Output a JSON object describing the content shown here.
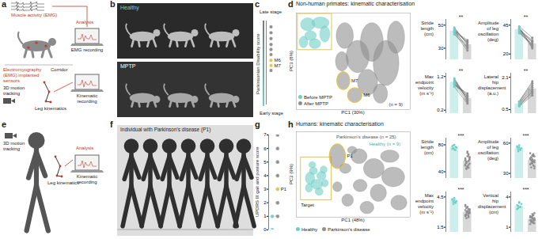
{
  "panels": {
    "a": {
      "letter": "a",
      "emg": "Muscle activity (EMG)",
      "sensors": "Electromyography (EMG) implanted sensors",
      "analysis": "Analysis",
      "emg_recording": "EMG recording",
      "corridor": "Corridor",
      "tracking": "3D motion tracking",
      "leg": "Leg kinematics",
      "kinematic_recording": "Kinematic recording"
    },
    "b": {
      "letter": "b",
      "top": "Healthy",
      "bottom": "MPTP"
    },
    "c": {
      "letter": "c",
      "top": "Late stage",
      "bottom": "Early stage"
    },
    "d": {
      "letter": "d"
    },
    "e": {
      "letter": "e",
      "tracking": "3D motion tracking",
      "leg": "Leg kinematics",
      "analysis": "Analysis",
      "kinematic_recording": "Kinematic recording"
    },
    "f": {
      "letter": "f",
      "title": "Individual with Parkinson's disease (P1)"
    },
    "g": {
      "letter": "g"
    },
    "h": {
      "letter": "h"
    }
  },
  "chart_data": [
    {
      "type": "scatter",
      "ylabel": "Parkinsonian Disability score",
      "x": [
        0,
        0,
        0,
        0,
        0,
        0,
        0,
        0,
        0
      ],
      "values": [
        9.3,
        8.6,
        7.9,
        7.2,
        6.6,
        6.0,
        5.3,
        4.7,
        4.1
      ],
      "colors": [
        "#8f8f8f",
        "#8f8f8f",
        "#8f8f8f",
        "#8f8f8f",
        "#8f8f8f",
        "#8f8f8f",
        "#e6c34a",
        "#e6c34a",
        "#8f8f8f"
      ],
      "xlim": [
        -1,
        1
      ],
      "ylim": [
        0,
        10
      ],
      "tick_labels": false,
      "annotations": [
        {
          "text": "M6",
          "x": 0,
          "y": 5.3
        },
        {
          "text": "M7",
          "x": 0,
          "y": 4.7
        }
      ]
    },
    {
      "type": "ellipse",
      "title": "Non-human primates: kinematic characterisation",
      "xlabel": "PC1 (30%)",
      "ylabel": "PC3 (8%)",
      "xlim": [
        -3,
        5
      ],
      "ylim": [
        -3,
        3
      ],
      "tick_labels": false,
      "legend": "bottom-left",
      "series": [
        {
          "name": "Before MPTP",
          "color": "#6fcfc6",
          "ellipses": [
            {
              "x": -2.2,
              "y": 2.3,
              "rx": 0.5,
              "ry": 0.4
            },
            {
              "x": -1.3,
              "y": 2.4,
              "rx": 0.6,
              "ry": 0.35
            },
            {
              "x": -2.0,
              "y": 1.6,
              "rx": 0.4,
              "ry": 0.3
            },
            {
              "x": -1.0,
              "y": 1.7,
              "rx": 0.35,
              "ry": 0.5
            },
            {
              "x": -1.7,
              "y": 1.1,
              "rx": 0.4,
              "ry": 0.3
            },
            {
              "x": -2.5,
              "y": 1.2,
              "rx": 0.3,
              "ry": 0.35
            }
          ]
        },
        {
          "name": "After MPTP",
          "color": "#8f8f8f",
          "ellipses": [
            {
              "x": 0.4,
              "y": 1.6,
              "rx": 0.6,
              "ry": 0.8
            },
            {
              "x": 1.3,
              "y": 0.3,
              "rx": 0.8,
              "ry": 1.0
            },
            {
              "x": 2.3,
              "y": 1.2,
              "rx": 0.8,
              "ry": 1.2
            },
            {
              "x": 3.3,
              "y": -0.1,
              "rx": 0.9,
              "ry": 1.4
            },
            {
              "x": 2.0,
              "y": -1.3,
              "rx": 0.7,
              "ry": 0.8
            },
            {
              "x": 0.2,
              "y": 0.0,
              "rx": 0.45,
              "ry": 0.6
            },
            {
              "x": 4.0,
              "y": 1.5,
              "rx": 0.6,
              "ry": 1.0
            },
            {
              "x": 2.9,
              "y": -2.0,
              "rx": 0.5,
              "ry": 0.6
            }
          ]
        }
      ],
      "highlights": [
        {
          "label": "M7",
          "x": 0.3,
          "y": -1.2,
          "rx": 0.45,
          "ry": 0.55,
          "color": "#e6c34a"
        },
        {
          "label": "M6",
          "x": 1.1,
          "y": -2.1,
          "rx": 0.5,
          "ry": 0.45,
          "color": "#e6c34a"
        }
      ],
      "target": {
        "x": [
          -2.9,
          -0.5
        ],
        "y": [
          0.7,
          2.95
        ],
        "color": "#e6c34a"
      },
      "annotations": [
        {
          "text": "(n = 9)",
          "x": 3.5,
          "y": -2.7,
          "color": "#333333"
        }
      ]
    },
    {
      "type": "bar",
      "ylabel": "Stride length (cm)",
      "categories": [
        null,
        null
      ],
      "values": [
        45,
        33
      ],
      "colors": [
        "#6fcfc6",
        "#8f8f8f"
      ],
      "pairs": [
        [
          47,
          34
        ],
        [
          45,
          30
        ],
        [
          44,
          36
        ],
        [
          48,
          33
        ],
        [
          43,
          28
        ],
        [
          46,
          35
        ],
        [
          42,
          31
        ],
        [
          45,
          37
        ],
        [
          44,
          32
        ]
      ],
      "ylim": [
        20,
        55
      ],
      "yticks": [
        30,
        50
      ],
      "annotation": "**"
    },
    {
      "type": "bar",
      "ylabel": "Amplitude of leg oscillation (deg)",
      "categories": [
        null,
        null
      ],
      "values": [
        41,
        29
      ],
      "colors": [
        "#6fcfc6",
        "#8f8f8f"
      ],
      "pairs": [
        [
          42,
          30
        ],
        [
          40,
          26
        ],
        [
          44,
          34
        ],
        [
          38,
          28
        ],
        [
          41,
          32
        ],
        [
          43,
          25
        ],
        [
          39,
          29
        ],
        [
          40,
          31
        ],
        [
          42,
          27
        ]
      ],
      "ylim": [
        15,
        50
      ],
      "yticks": [
        20,
        45
      ],
      "annotation": "**"
    },
    {
      "type": "bar",
      "ylabel": "Max endpoint velocity (m s⁻¹)",
      "categories": [
        null,
        null
      ],
      "values": [
        1.03,
        0.55
      ],
      "colors": [
        "#6fcfc6",
        "#8f8f8f"
      ],
      "pairs": [
        [
          1.1,
          0.6
        ],
        [
          1.0,
          0.45
        ],
        [
          0.95,
          0.7
        ],
        [
          1.15,
          0.5
        ],
        [
          1.05,
          0.55
        ],
        [
          0.9,
          0.4
        ],
        [
          1.0,
          0.65
        ],
        [
          1.1,
          0.5
        ],
        [
          0.98,
          0.6
        ]
      ],
      "ylim": [
        0.1,
        1.3
      ],
      "yticks": [
        0.2,
        1.2
      ],
      "annotation": "**"
    },
    {
      "type": "bar",
      "ylabel": "Lateral hip displacement (a.u.)",
      "categories": [
        null,
        null
      ],
      "values": [
        0.78,
        1.53
      ],
      "colors": [
        "#6fcfc6",
        "#8f8f8f"
      ],
      "pairs": [
        [
          0.8,
          1.6
        ],
        [
          0.7,
          1.3
        ],
        [
          0.9,
          1.9
        ],
        [
          0.75,
          1.4
        ],
        [
          0.85,
          1.7
        ],
        [
          0.65,
          1.2
        ],
        [
          0.8,
          1.5
        ],
        [
          0.9,
          1.8
        ],
        [
          0.7,
          1.4
        ]
      ],
      "ylim": [
        0.3,
        2.3
      ],
      "yticks": [
        0.5,
        2.1
      ],
      "annotation": "**"
    },
    {
      "type": "scatter",
      "ylabel": "UPDRS III gait and posture score",
      "x": [
        0,
        0,
        0,
        0,
        0,
        0,
        0,
        0,
        0,
        1,
        1,
        1,
        1,
        1,
        1,
        1,
        1,
        1,
        1,
        1,
        1,
        1,
        1,
        1,
        1,
        1,
        1,
        1,
        1,
        1,
        1,
        1,
        1,
        1
      ],
      "values": [
        0,
        0,
        0,
        0,
        0,
        0,
        1,
        1,
        0,
        1,
        1,
        2,
        2,
        2,
        3,
        3,
        3,
        4,
        4,
        4,
        4,
        5,
        5,
        5,
        5,
        6,
        6,
        6,
        7,
        7,
        2,
        4,
        1,
        3
      ],
      "colors": [
        "#6fcfc6",
        "#6fcfc6",
        "#6fcfc6",
        "#6fcfc6",
        "#6fcfc6",
        "#6fcfc6",
        "#6fcfc6",
        "#6fcfc6",
        "#6fcfc6",
        "#8f8f8f",
        "#8f8f8f",
        "#8f8f8f",
        "#8f8f8f",
        "#8f8f8f",
        "#8f8f8f",
        "#8f8f8f",
        "#8f8f8f",
        "#8f8f8f",
        "#8f8f8f",
        "#8f8f8f",
        "#8f8f8f",
        "#8f8f8f",
        "#8f8f8f",
        "#8f8f8f",
        "#8f8f8f",
        "#8f8f8f",
        "#8f8f8f",
        "#8f8f8f",
        "#8f8f8f",
        "#8f8f8f",
        "#8f8f8f",
        "#8f8f8f",
        "#8f8f8f",
        "#e6c34a"
      ],
      "xlim": [
        -0.7,
        1.7
      ],
      "ylim": [
        0,
        7
      ],
      "yticks": [
        0,
        1,
        2,
        3,
        4,
        5,
        6,
        7
      ],
      "tick_labels": "y",
      "annotations": [
        {
          "text": "P1",
          "x": 1,
          "y": 3
        }
      ]
    },
    {
      "type": "ellipse",
      "title": "Humans: kinematic characterisation",
      "xlabel": "PC1 (48%)",
      "ylabel": "PC2 (9%)",
      "xlim": [
        -4,
        6
      ],
      "ylim": [
        -3,
        4
      ],
      "tick_labels": false,
      "legend": "bottom",
      "series": [
        {
          "name": "Healthy",
          "color": "#6fcfc6",
          "ellipses": [
            {
              "x": -2.8,
              "y": 0.2,
              "rx": 0.4,
              "ry": 0.5
            },
            {
              "x": -2.2,
              "y": -0.3,
              "rx": 0.5,
              "ry": 0.4
            },
            {
              "x": -2.5,
              "y": 0.8,
              "rx": 0.35,
              "ry": 0.3
            },
            {
              "x": -1.8,
              "y": 0.4,
              "rx": 0.4,
              "ry": 0.35
            },
            {
              "x": -2.9,
              "y": -0.6,
              "rx": 0.3,
              "ry": 0.35
            },
            {
              "x": -2.0,
              "y": -0.9,
              "rx": 0.35,
              "ry": 0.3
            },
            {
              "x": -1.5,
              "y": -0.2,
              "rx": 0.3,
              "ry": 0.3
            },
            {
              "x": -2.6,
              "y": 1.3,
              "rx": 0.3,
              "ry": 0.25
            },
            {
              "x": -1.6,
              "y": 0.9,
              "rx": 0.3,
              "ry": 0.3
            }
          ]
        },
        {
          "name": "Parkinson's disease",
          "color": "#8f8f8f",
          "ellipses": [
            {
              "x": 0.3,
              "y": 1.0,
              "rx": 0.5,
              "ry": 0.4
            },
            {
              "x": 1.5,
              "y": 2.0,
              "rx": 0.7,
              "ry": 0.6
            },
            {
              "x": 2.8,
              "y": 1.0,
              "rx": 0.9,
              "ry": 0.8
            },
            {
              "x": 4.2,
              "y": 2.0,
              "rx": 0.8,
              "ry": 0.5
            },
            {
              "x": 4.5,
              "y": 0.3,
              "rx": 1.0,
              "ry": 0.8
            },
            {
              "x": 3.2,
              "y": -1.0,
              "rx": 0.7,
              "ry": 0.7
            },
            {
              "x": 1.6,
              "y": -0.4,
              "rx": 0.6,
              "ry": 0.5
            },
            {
              "x": 0.5,
              "y": -1.6,
              "rx": 0.5,
              "ry": 0.5
            },
            {
              "x": 2.2,
              "y": -2.2,
              "rx": 0.6,
              "ry": 0.5
            },
            {
              "x": 5.0,
              "y": -1.8,
              "rx": 0.7,
              "ry": 0.6
            },
            {
              "x": -0.4,
              "y": -0.5,
              "rx": 0.4,
              "ry": 0.4
            },
            {
              "x": 0.9,
              "y": 2.5,
              "rx": 0.4,
              "ry": 0.3
            }
          ]
        }
      ],
      "highlights": [
        {
          "label": "P1",
          "x": -0.4,
          "y": 2.0,
          "rx": 0.7,
          "ry": 1.0,
          "color": "#e6c34a"
        }
      ],
      "target": {
        "x": [
          -3.6,
          -0.9
        ],
        "y": [
          -1.6,
          1.9
        ],
        "color": "#e6c34a",
        "label": "Target"
      },
      "annotations": [
        {
          "text": "Parkinson's disease (n = 25)",
          "x": -0.5,
          "y": 3.6,
          "color": "#555555"
        },
        {
          "text": "Healthy (n = 9)",
          "x": 2.4,
          "y": 3.0,
          "color": "#3fb3a8"
        }
      ]
    },
    {
      "type": "bar",
      "ylabel": "Stride length (cm)",
      "categories": [
        null,
        null
      ],
      "values": [
        76,
        56
      ],
      "colors": [
        "#6fcfc6",
        "#8f8f8f"
      ],
      "points": [
        [
          78,
          75,
          80,
          72,
          76,
          74,
          79,
          73,
          77
        ],
        [
          60,
          55,
          48,
          65,
          52,
          58,
          45,
          70,
          50,
          62,
          57,
          53,
          47,
          66,
          59,
          51,
          44,
          63,
          56,
          61,
          49,
          54,
          68,
          46,
          58
        ]
      ],
      "ylim": [
        30,
        90
      ],
      "yticks": [
        40,
        80
      ],
      "annotation": "***"
    },
    {
      "type": "bar",
      "ylabel": "Amplitude of leg oscillation (deg)",
      "categories": [
        null,
        null
      ],
      "values": [
        55,
        43
      ],
      "colors": [
        "#6fcfc6",
        "#8f8f8f"
      ],
      "points": [
        [
          56,
          54,
          58,
          53,
          55,
          57,
          52,
          56,
          54
        ],
        [
          45,
          40,
          48,
          38,
          43,
          50,
          36,
          44,
          47,
          41,
          39,
          46,
          42,
          49,
          37,
          45,
          43,
          40,
          48,
          35,
          44,
          46,
          41,
          42,
          47
        ]
      ],
      "ylim": [
        25,
        65
      ],
      "yticks": [
        30,
        60
      ],
      "annotation": "***"
    },
    {
      "type": "bar",
      "ylabel": "Max endpoint velocity (m s⁻¹)",
      "categories": [
        null,
        null
      ],
      "values": [
        4.1,
        3.0
      ],
      "colors": [
        "#6fcfc6",
        "#8f8f8f"
      ],
      "points": [
        [
          4.2,
          4.0,
          4.4,
          3.9,
          4.1,
          4.3,
          3.8,
          4.2,
          4.0
        ],
        [
          3.2,
          2.8,
          3.5,
          2.5,
          3.0,
          3.6,
          2.7,
          3.1,
          3.3,
          2.9,
          2.6,
          3.4,
          3.0,
          2.8,
          3.2,
          3.7,
          2.4,
          3.1,
          2.9,
          3.3,
          2.7,
          3.0,
          3.5,
          2.6,
          3.1
        ]
      ],
      "ylim": [
        1,
        5
      ],
      "yticks": [
        1.5,
        4.5
      ],
      "annotation": "***"
    },
    {
      "type": "bar",
      "ylabel": "Vertical hip displacement (cm)",
      "categories": [
        null,
        null
      ],
      "values": [
        3.1,
        1.8
      ],
      "colors": [
        "#6fcfc6",
        "#8f8f8f"
      ],
      "points": [
        [
          3.2,
          2.9,
          3.5,
          3.0,
          3.3,
          2.8,
          3.1,
          3.4,
          3.0
        ],
        [
          2.0,
          1.6,
          2.3,
          1.4,
          1.9,
          2.1,
          1.7,
          1.5,
          2.2,
          1.8,
          1.3,
          2.0,
          1.9,
          1.6,
          2.4,
          1.7,
          1.5,
          2.1,
          1.8,
          1.4,
          2.0,
          1.6,
          1.9,
          2.2,
          1.7
        ]
      ],
      "ylim": [
        0.5,
        4.5
      ],
      "yticks": [
        1,
        4
      ],
      "annotation": "***"
    }
  ]
}
